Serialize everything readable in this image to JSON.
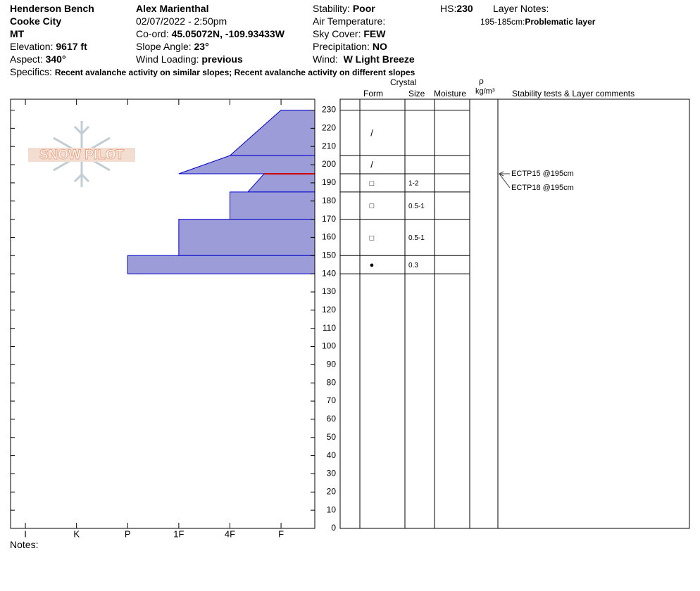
{
  "header": {
    "location": "Henderson Bench",
    "area": "Cooke City",
    "state": "MT",
    "elevation": {
      "label": "Elevation:",
      "value": "9617 ft"
    },
    "aspect": {
      "label": "Aspect:",
      "value": "340°"
    },
    "observer": "Alex Marienthal",
    "datetime": "02/07/2022 - 2:50pm",
    "coord": {
      "label": "Co-ord:",
      "value": "45.05072N, -109.93433W"
    },
    "slope": {
      "label": "Slope Angle:",
      "value": "23°"
    },
    "wind_loading": {
      "label": "Wind Loading:",
      "value": "previous"
    },
    "stability": {
      "label": "Stability:",
      "value": "Poor"
    },
    "air_temp": {
      "label": "Air Temperature:"
    },
    "sky": {
      "label": "Sky Cover:",
      "value": "FEW"
    },
    "precip": {
      "label": "Precipitation:",
      "value": "NO"
    },
    "wind": {
      "label": "Wind:",
      "value": "W Light Breeze"
    },
    "hs": {
      "label": "HS:",
      "value": 230
    },
    "layer_notes": {
      "label": "Layer Notes:",
      "range": "195-185cm:",
      "text": "Problematic layer"
    },
    "specifics": {
      "label": "Specifics:",
      "value": "Recent avalanche activity on similar slopes; Recent avalanche activity on different slopes"
    }
  },
  "logo": "SNOW PILOT",
  "columns": {
    "form": "Form",
    "crystal": "Crystal",
    "size": "Size",
    "moisture": "Moisture",
    "density": "ρ",
    "density_unit": "kg/m³",
    "comments": "Stability tests & Layer comments"
  },
  "notes": "Notes:",
  "chart_data": {
    "type": "snow-profile",
    "color": "#9c9cd8",
    "edge_color": "#0000cc",
    "ylim": [
      0,
      236
    ],
    "yticks": [
      0,
      10,
      20,
      30,
      40,
      50,
      60,
      70,
      80,
      90,
      100,
      110,
      120,
      130,
      140,
      150,
      160,
      170,
      180,
      190,
      200,
      210,
      220,
      230
    ],
    "xlim": [
      6.29,
      0.34
    ],
    "xticks": [
      {
        "value": 6,
        "label": "I"
      },
      {
        "value": 5,
        "label": "K"
      },
      {
        "value": 4,
        "label": "P"
      },
      {
        "value": 3,
        "label": "1F"
      },
      {
        "value": 2,
        "label": "4F"
      },
      {
        "value": 1,
        "label": "F"
      }
    ],
    "layers": [
      {
        "depth_top": 230,
        "depth_bottom": 205,
        "hardness_top": 1,
        "hardness_bottom": 2,
        "form": "/"
      },
      {
        "depth_top": 205,
        "depth_bottom": 195,
        "hardness_top": 2,
        "hardness_bottom": 3,
        "form": "/"
      },
      {
        "depth_top": 195,
        "depth_bottom": 185,
        "hardness_top": 1.33,
        "hardness_bottom": 1.65,
        "form": "□",
        "size": "1-2"
      },
      {
        "depth_top": 185,
        "depth_bottom": 170,
        "hardness_top": 2,
        "hardness_bottom": 2,
        "form": "□",
        "size": "0.5-1"
      },
      {
        "depth_top": 170,
        "depth_bottom": 150,
        "hardness_top": 3,
        "hardness_bottom": 3,
        "form": "□",
        "size": "0.5-1"
      },
      {
        "depth_top": 150,
        "depth_bottom": 140,
        "hardness_top": 4,
        "hardness_bottom": 4,
        "form": "●",
        "size": "0.3"
      }
    ],
    "critical_layer": 195,
    "critical_color": "#cc0000",
    "tests": [
      {
        "label": "ECTP15 @195cm",
        "depth": 195
      },
      {
        "label": "ECTP18 @195cm",
        "depth": 195
      }
    ]
  }
}
